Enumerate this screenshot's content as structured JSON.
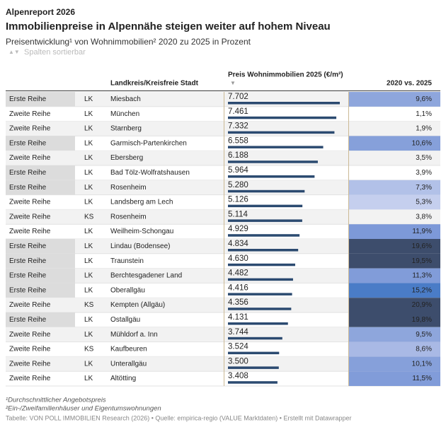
{
  "header": {
    "kicker": "Alpenreport 2026",
    "title": "Immobilienpreise in Alpennähe steigen weiter auf hohem Niveau",
    "subtitle": "Preisentwicklung¹ von Wohnimmobilien² 2020 zu 2025 in Prozent",
    "sort_hint": "Spalten sortierbar"
  },
  "table": {
    "columns": [
      "Landkreis/Kreisfreie Stadt",
      "Preis Wohnimmobilien 2025 (€/m²)",
      "2020 vs. 2025"
    ],
    "bar_color": "#2b4a70",
    "rows": [
      {
        "group": "Erste Reihe",
        "kind": "LK",
        "name": "Miesbach",
        "price": {
          "value": 7702,
          "label": "7.702"
        },
        "change": {
          "value": 9.6,
          "label": "9,6%"
        },
        "color": "#8ea6dc"
      },
      {
        "group": "Zweite Reihe",
        "kind": "LK",
        "name": "München",
        "price": {
          "value": 7461,
          "label": "7.461"
        },
        "change": {
          "value": 1.1,
          "label": "1,1%"
        }
      },
      {
        "group": "Zweite Reihe",
        "kind": "LK",
        "name": "Starnberg",
        "price": {
          "value": 7332,
          "label": "7.332"
        },
        "change": {
          "value": 1.9,
          "label": "1,9%"
        }
      },
      {
        "group": "Erste Reihe",
        "kind": "LK",
        "name": "Garmisch-Partenkirchen",
        "price": {
          "value": 6558,
          "label": "6.558"
        },
        "change": {
          "value": 10.6,
          "label": "10,6%"
        },
        "color": "#86a0da"
      },
      {
        "group": "Zweite Reihe",
        "kind": "LK",
        "name": "Ebersberg",
        "price": {
          "value": 6188,
          "label": "6.188"
        },
        "change": {
          "value": 3.5,
          "label": "3,5%"
        }
      },
      {
        "group": "Erste Reihe",
        "kind": "LK",
        "name": "Bad Tölz-Wolfratshausen",
        "price": {
          "value": 5964,
          "label": "5.964"
        },
        "change": {
          "value": 3.9,
          "label": "3,9%"
        }
      },
      {
        "group": "Erste Reihe",
        "kind": "LK",
        "name": "Rosenheim",
        "price": {
          "value": 5280,
          "label": "5.280"
        },
        "change": {
          "value": 7.3,
          "label": "7,3%"
        },
        "color": "#b2c1e8"
      },
      {
        "group": "Zweite Reihe",
        "kind": "LK",
        "name": "Landsberg am Lech",
        "price": {
          "value": 5126,
          "label": "5.126"
        },
        "change": {
          "value": 5.3,
          "label": "5,3%"
        },
        "color": "#c5cfee"
      },
      {
        "group": "Zweite Reihe",
        "kind": "KS",
        "name": "Rosenheim",
        "price": {
          "value": 5114,
          "label": "5.114"
        },
        "change": {
          "value": 3.8,
          "label": "3,8%"
        }
      },
      {
        "group": "Zweite Reihe",
        "kind": "LK",
        "name": "Weilheim-Schongau",
        "price": {
          "value": 4929,
          "label": "4.929"
        },
        "change": {
          "value": 11.9,
          "label": "11,9%"
        },
        "color": "#7d99d8"
      },
      {
        "group": "Erste Reihe",
        "kind": "LK",
        "name": "Lindau (Bodensee)",
        "price": {
          "value": 4834,
          "label": "4.834"
        },
        "change": {
          "value": 19.6,
          "label": "19,6%"
        },
        "color": "#3d4d6c"
      },
      {
        "group": "Erste Reihe",
        "kind": "LK",
        "name": "Traunstein",
        "price": {
          "value": 4630,
          "label": "4.630"
        },
        "change": {
          "value": 19.5,
          "label": "19,5%"
        },
        "color": "#3d4d6c"
      },
      {
        "group": "Erste Reihe",
        "kind": "LK",
        "name": "Berchtesgadener Land",
        "price": {
          "value": 4482,
          "label": "4.482"
        },
        "change": {
          "value": 11.3,
          "label": "11,3%"
        },
        "color": "#819cd9"
      },
      {
        "group": "Erste Reihe",
        "kind": "LK",
        "name": "Oberallgäu",
        "price": {
          "value": 4416,
          "label": "4.416"
        },
        "change": {
          "value": 15.2,
          "label": "15,2%"
        },
        "color": "#4a7cc7"
      },
      {
        "group": "Zweite Reihe",
        "kind": "KS",
        "name": "Kempten (Allgäu)",
        "price": {
          "value": 4356,
          "label": "4.356"
        },
        "change": {
          "value": 20.9,
          "label": "20,9%"
        },
        "color": "#3d4d6c"
      },
      {
        "group": "Erste Reihe",
        "kind": "LK",
        "name": "Ostallgäu",
        "price": {
          "value": 4131,
          "label": "4.131"
        },
        "change": {
          "value": 19.8,
          "label": "19,8%"
        },
        "color": "#3d4d6c"
      },
      {
        "group": "Zweite Reihe",
        "kind": "LK",
        "name": "Mühldorf a. Inn",
        "price": {
          "value": 3744,
          "label": "3.744"
        },
        "change": {
          "value": 9.5,
          "label": "9,5%"
        },
        "color": "#8ea6dc"
      },
      {
        "group": "Zweite Reihe",
        "kind": "KS",
        "name": "Kaufbeuren",
        "price": {
          "value": 3524,
          "label": "3.524"
        },
        "change": {
          "value": 8.6,
          "label": "8,6%"
        },
        "color": "#a9b9e5"
      },
      {
        "group": "Zweite Reihe",
        "kind": "LK",
        "name": "Unterallgäu",
        "price": {
          "value": 3500,
          "label": "3.500"
        },
        "change": {
          "value": 10.1,
          "label": "10,1%"
        },
        "color": "#86a0da"
      },
      {
        "group": "Zweite Reihe",
        "kind": "LK",
        "name": "Altötting",
        "price": {
          "value": 3408,
          "label": "3.408"
        },
        "change": {
          "value": 11.5,
          "label": "11,5%"
        },
        "color": "#819cd9"
      }
    ]
  },
  "footer": {
    "notes": [
      "¹Durchschnittlicher Angebotspreis",
      "²Ein-/Zweifamilienhäuser und Eigentumswohnungen"
    ],
    "source": "Tabelle: VON POLL IMMOBILIEN Research (2026) • Quelle: empirica-regio (VALUE Marktdaten) • Erstellt mit Datawrapper"
  }
}
